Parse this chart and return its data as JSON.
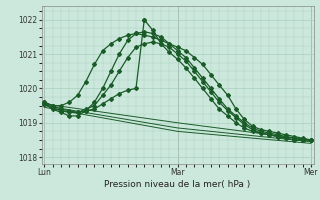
{
  "xlabel": "Pression niveau de la mer( hPa )",
  "bg_color": "#cce8dc",
  "grid_color": "#aacfbf",
  "line_color": "#1a5c28",
  "ylim": [
    1017.8,
    1022.4
  ],
  "yticks": [
    1018,
    1019,
    1020,
    1021,
    1022
  ],
  "day_labels": [
    "Lun",
    "Mar",
    "Mer"
  ],
  "day_positions": [
    0.0,
    0.5,
    1.0
  ],
  "series": [
    {
      "x": [
        0.0,
        0.031,
        0.063,
        0.094,
        0.125,
        0.156,
        0.188,
        0.219,
        0.25,
        0.281,
        0.313,
        0.344,
        0.375,
        0.406,
        0.438,
        0.469,
        0.5,
        0.531,
        0.563,
        0.594,
        0.625,
        0.656,
        0.688,
        0.719,
        0.75,
        0.781,
        0.813,
        0.844,
        0.875,
        0.906,
        0.938,
        0.969,
        1.0
      ],
      "y": [
        1019.6,
        1019.5,
        1019.5,
        1019.6,
        1019.8,
        1020.2,
        1020.7,
        1021.1,
        1021.3,
        1021.45,
        1021.55,
        1021.6,
        1021.55,
        1021.5,
        1021.4,
        1021.3,
        1021.2,
        1021.1,
        1020.9,
        1020.7,
        1020.4,
        1020.1,
        1019.8,
        1019.4,
        1019.1,
        1018.9,
        1018.8,
        1018.75,
        1018.7,
        1018.65,
        1018.6,
        1018.55,
        1018.5
      ],
      "has_markers": true
    },
    {
      "x": [
        0.0,
        0.031,
        0.063,
        0.094,
        0.125,
        0.156,
        0.188,
        0.219,
        0.25,
        0.281,
        0.313,
        0.344,
        0.375,
        0.406,
        0.438,
        0.469,
        0.5,
        0.531,
        0.563,
        0.594,
        0.625,
        0.656,
        0.688,
        0.719,
        0.75,
        0.781,
        0.813,
        0.844,
        0.875,
        0.906,
        0.938,
        0.969,
        1.0
      ],
      "y": [
        1019.55,
        1019.4,
        1019.3,
        1019.2,
        1019.2,
        1019.35,
        1019.6,
        1020.0,
        1020.5,
        1021.0,
        1021.4,
        1021.6,
        1021.65,
        1021.6,
        1021.5,
        1021.3,
        1021.1,
        1020.9,
        1020.6,
        1020.3,
        1020.0,
        1019.7,
        1019.4,
        1019.2,
        1019.0,
        1018.85,
        1018.75,
        1018.7,
        1018.65,
        1018.6,
        1018.55,
        1018.5,
        1018.5
      ],
      "has_markers": true
    },
    {
      "x": [
        0.0,
        0.031,
        0.063,
        0.094,
        0.125,
        0.156,
        0.188,
        0.219,
        0.25,
        0.281,
        0.313,
        0.344,
        0.375,
        0.406,
        0.438,
        0.469,
        0.5,
        0.531,
        0.563,
        0.594,
        0.625,
        0.656,
        0.688,
        0.719,
        0.75,
        0.781,
        0.813,
        0.844,
        0.875,
        0.906,
        0.938,
        0.969,
        1.0
      ],
      "y": [
        1019.6,
        1019.5,
        1019.4,
        1019.35,
        1019.3,
        1019.4,
        1019.5,
        1019.8,
        1020.1,
        1020.5,
        1020.9,
        1021.2,
        1021.3,
        1021.35,
        1021.3,
        1021.2,
        1021.0,
        1020.8,
        1020.5,
        1020.2,
        1019.9,
        1019.6,
        1019.35,
        1019.15,
        1018.95,
        1018.8,
        1018.7,
        1018.65,
        1018.6,
        1018.55,
        1018.5,
        1018.5,
        1018.5
      ],
      "has_markers": true
    },
    {
      "x": [
        0.0,
        0.031,
        0.063,
        0.094,
        0.125,
        0.156,
        0.188,
        0.219,
        0.25,
        0.281,
        0.313,
        0.344,
        0.375
      ],
      "y": [
        1019.55,
        1019.45,
        1019.35,
        1019.3,
        1019.3,
        1019.35,
        1019.4,
        1019.55,
        1019.7,
        1019.85,
        1019.95,
        1020.0,
        1022.0
      ],
      "has_markers": true,
      "peak_then": {
        "x2": [
          0.375,
          0.406,
          0.438,
          0.469,
          0.5,
          0.531,
          0.563,
          0.594,
          0.625,
          0.656,
          0.688,
          0.719,
          0.75,
          0.781,
          0.813,
          0.844,
          0.875,
          0.906,
          0.938,
          0.969,
          1.0
        ],
        "y2": [
          1022.0,
          1021.7,
          1021.3,
          1021.05,
          1020.85,
          1020.6,
          1020.3,
          1020.0,
          1019.7,
          1019.4,
          1019.2,
          1019.0,
          1018.85,
          1018.75,
          1018.7,
          1018.65,
          1018.6,
          1018.55,
          1018.5,
          1018.5,
          1018.5
        ]
      }
    },
    {
      "x": [
        0.0,
        0.5,
        1.0
      ],
      "y": [
        1019.55,
        1019.0,
        1018.5
      ],
      "has_markers": false,
      "is_diagonal": true
    },
    {
      "x": [
        0.0,
        0.5,
        1.0
      ],
      "y": [
        1019.5,
        1018.85,
        1018.45
      ],
      "has_markers": false,
      "is_diagonal": true
    },
    {
      "x": [
        0.0,
        0.5,
        1.0
      ],
      "y": [
        1019.45,
        1018.75,
        1018.4
      ],
      "has_markers": false,
      "is_diagonal": true
    }
  ]
}
